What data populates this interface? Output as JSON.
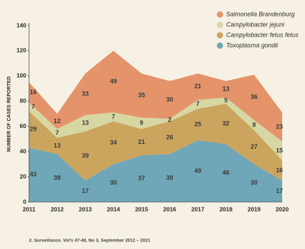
{
  "chart_data": {
    "type": "stacked_area",
    "y_label": "NUMBER OF CASES REPORTED",
    "footnote": "2. Surveillance. Vol's 47-48, No 3, September 2012 – 2021",
    "categories": [
      "2011",
      "2012",
      "2013",
      "2014",
      "2015",
      "2016",
      "2017",
      "2018",
      "2019",
      "2020"
    ],
    "series": [
      {
        "name": "Toxoplasma gondii",
        "color": "#6fa6b8",
        "values": [
          43,
          38,
          17,
          30,
          37,
          38,
          49,
          46,
          30,
          17
        ]
      },
      {
        "name": "Campylobacter fetus fetus",
        "color": "#cba55e",
        "values": [
          29,
          13,
          39,
          34,
          21,
          26,
          25,
          32,
          27,
          16
        ]
      },
      {
        "name": "Campylobacter jejuni",
        "color": "#d6d7a3",
        "values": [
          7,
          7,
          13,
          7,
          9,
          2,
          7,
          5,
          8,
          15
        ]
      },
      {
        "name": "Salmonella Brandenburg",
        "color": "#e5936a",
        "values": [
          16,
          12,
          33,
          49,
          35,
          30,
          21,
          13,
          36,
          23
        ]
      }
    ],
    "ylim": [
      0,
      140
    ],
    "yticks": [
      0,
      20,
      40,
      60,
      80,
      100,
      120,
      140
    ],
    "grid": false
  }
}
